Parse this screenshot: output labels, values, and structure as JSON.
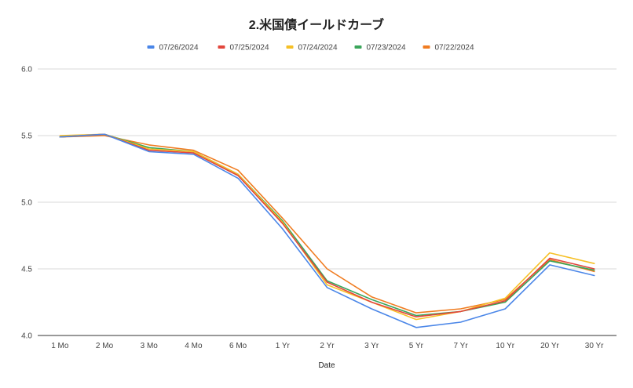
{
  "chart_data": {
    "type": "line",
    "title": "2.米国債イールドカーブ",
    "xlabel": "Date",
    "ylabel": "",
    "categories": [
      "1 Mo",
      "2 Mo",
      "3 Mo",
      "4 Mo",
      "6 Mo",
      "1 Yr",
      "2 Yr",
      "3 Yr",
      "5 Yr",
      "7 Yr",
      "10 Yr",
      "20 Yr",
      "30 Yr"
    ],
    "ylim": [
      4.0,
      6.0
    ],
    "yticks": [
      "4.0",
      "4.5",
      "5.0",
      "5.5",
      "6.0"
    ],
    "grid": true,
    "legend_position": "top",
    "series": [
      {
        "name": "07/26/2024",
        "color": "#4a86e8",
        "values": [
          5.49,
          5.51,
          5.38,
          5.36,
          5.18,
          4.8,
          4.36,
          4.2,
          4.06,
          4.1,
          4.2,
          4.53,
          4.45
        ]
      },
      {
        "name": "07/25/2024",
        "color": "#e2463c",
        "values": [
          5.49,
          5.51,
          5.39,
          5.37,
          5.2,
          4.84,
          4.4,
          4.25,
          4.14,
          4.18,
          4.26,
          4.58,
          4.5
        ]
      },
      {
        "name": "07/24/2024",
        "color": "#f6c026",
        "values": [
          5.5,
          5.51,
          5.4,
          5.38,
          5.21,
          4.85,
          4.38,
          4.25,
          4.12,
          4.18,
          4.28,
          4.62,
          4.54
        ]
      },
      {
        "name": "07/23/2024",
        "color": "#3aa55a",
        "values": [
          5.49,
          5.51,
          5.41,
          5.38,
          5.21,
          4.86,
          4.41,
          4.27,
          4.15,
          4.18,
          4.25,
          4.56,
          4.49
        ]
      },
      {
        "name": "07/22/2024",
        "color": "#f07c21",
        "values": [
          5.49,
          5.5,
          5.43,
          5.39,
          5.24,
          4.88,
          4.5,
          4.29,
          4.17,
          4.2,
          4.27,
          4.57,
          4.48
        ]
      }
    ]
  }
}
